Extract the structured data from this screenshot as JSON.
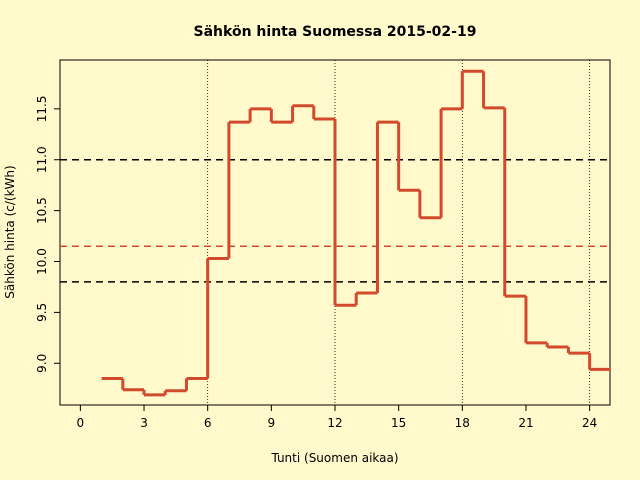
{
  "chart_data": {
    "type": "step",
    "title": "Sähkön hinta Suomessa 2015-02-19",
    "x_label": "Tunti (Suomen aikaa)",
    "y_label": "Sähkön hinta (c/(kWh)",
    "x": [
      1,
      2,
      3,
      4,
      5,
      6,
      7,
      8,
      9,
      10,
      11,
      12,
      13,
      14,
      15,
      16,
      17,
      18,
      19,
      20,
      21,
      22,
      23,
      24
    ],
    "series": [
      {
        "color": "#d24a2c",
        "values": [
          8.85,
          8.74,
          8.69,
          8.73,
          8.85,
          10.03,
          11.37,
          11.5,
          11.37,
          11.53,
          11.4,
          9.57,
          9.69,
          11.37,
          10.7,
          10.43,
          11.5,
          11.87,
          11.51,
          9.66,
          9.2,
          9.16,
          9.1,
          8.94
        ]
      }
    ],
    "xlim": [
      -0.96,
      24.96
    ],
    "xticks": [
      0,
      3,
      6,
      9,
      12,
      15,
      18,
      21,
      24
    ],
    "ylim": [
      8.59,
      11.98
    ],
    "yticks": [
      {
        "value": 9,
        "label": "9.0"
      },
      9.5,
      {
        "value": 10,
        "label": "10.0"
      },
      10.5,
      {
        "value": 11,
        "label": "11.0"
      },
      11.5
    ],
    "hlines": [
      {
        "value": 11.0,
        "color": "#000000"
      },
      {
        "value": 9.8,
        "color": "#000000"
      },
      {
        "value": 10.15,
        "color": "#d24a2c"
      }
    ],
    "vlines": [
      6,
      12,
      18,
      24
    ]
  }
}
